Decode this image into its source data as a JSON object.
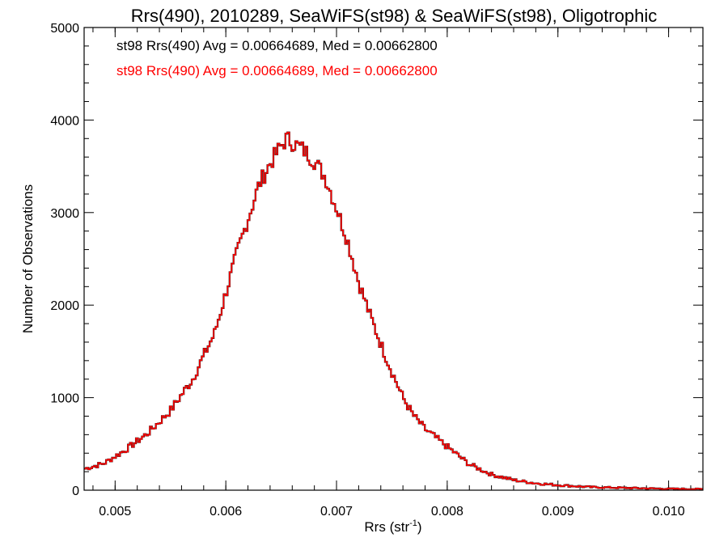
{
  "chart_data": {
    "type": "line",
    "title": "Rrs(490), 2010289, SeaWiFS(st98) & SeaWiFS(st98), Oligotrophic",
    "xlabel_main": "Rrs (str",
    "xlabel_sup": "-1",
    "xlabel_close": ")",
    "ylabel": "Number of Observations",
    "xlim": [
      0.00472,
      0.01031
    ],
    "ylim": [
      0,
      5000
    ],
    "xticks": [
      "0.005",
      "0.006",
      "0.007",
      "0.008",
      "0.009",
      "0.010"
    ],
    "xtick_values": [
      0.005,
      0.006,
      0.007,
      0.008,
      0.009,
      0.01
    ],
    "yticks": [
      "0",
      "1000",
      "2000",
      "3000",
      "4000",
      "5000"
    ],
    "ytick_values": [
      0,
      1000,
      2000,
      3000,
      4000,
      5000
    ],
    "grid": false,
    "legend_position": "top-left",
    "series": [
      {
        "name": "st98 Rrs(490) Avg = 0.00664689, Med = 0.00662800",
        "color": "#000000"
      },
      {
        "name": "st98 Rrs(490) Avg = 0.00664689, Med = 0.00662800",
        "color": "#ff0000"
      }
    ],
    "histogram_profile": {
      "x": [
        0.00472,
        0.0049,
        0.0051,
        0.0053,
        0.0055,
        0.0057,
        0.0059,
        0.0061,
        0.0063,
        0.0064,
        0.0065,
        0.00655,
        0.0066,
        0.0067,
        0.0068,
        0.0069,
        0.007,
        0.0071,
        0.0072,
        0.0073,
        0.0074,
        0.0075,
        0.0076,
        0.0077,
        0.0078,
        0.008,
        0.0082,
        0.0084,
        0.0086,
        0.0088,
        0.009,
        0.0093,
        0.0096,
        0.01,
        0.01031
      ],
      "y": [
        230,
        290,
        440,
        620,
        860,
        1200,
        1700,
        2560,
        3300,
        3530,
        3720,
        3800,
        3760,
        3680,
        3560,
        3380,
        3050,
        2700,
        2250,
        1900,
        1580,
        1280,
        1000,
        800,
        660,
        470,
        280,
        170,
        110,
        75,
        55,
        33,
        25,
        15,
        12
      ]
    }
  }
}
